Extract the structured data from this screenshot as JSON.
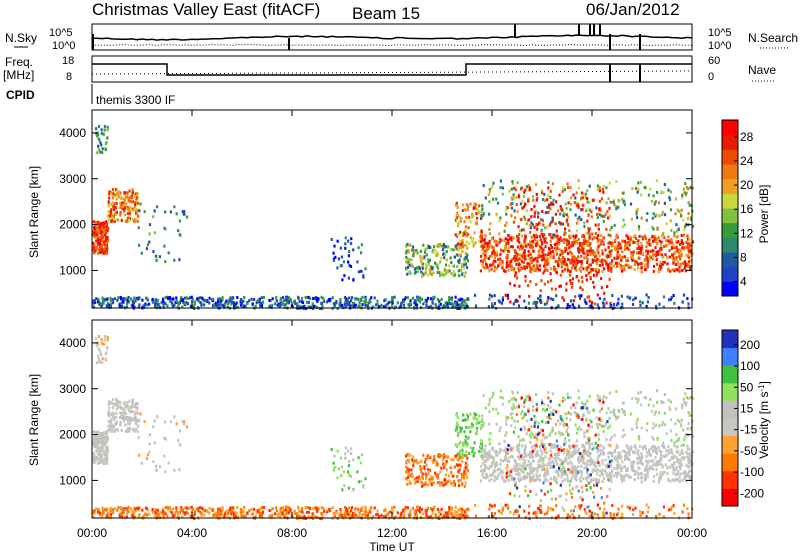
{
  "header": {
    "title": "Christmas Valley East (fitACF)",
    "beam": "Beam 15",
    "date": "06/Jan/2012"
  },
  "summary_labels": {
    "nsky": "N.Sky",
    "nsearch": "N.Search",
    "freq": "Freq.",
    "freq_unit": "[MHz]",
    "nave": "Nave",
    "cpid": "CPID",
    "cpid_value": "themis 3300 IF",
    "noise_ticks": [
      "10^5",
      "10^0"
    ],
    "freq_ticks": [
      "18",
      "8"
    ],
    "nave_ticks": [
      "60",
      "0"
    ]
  },
  "colors": {
    "power_scale": [
      "#0000ff",
      "#2040c8",
      "#1e5aa0",
      "#2a8a6a",
      "#3a9a3a",
      "#80c040",
      "#c8d840",
      "#f0a020",
      "#f07810",
      "#f04a00",
      "#e81a00",
      "#ff0000"
    ],
    "velocity_scale": [
      "#ff0000",
      "#ff3300",
      "#ff7a00",
      "#ffa030",
      "#c8c8c0",
      "#c0c0c0",
      "#90e060",
      "#40c040",
      "#4080ff",
      "#2030c0"
    ]
  },
  "chart_data": [
    {
      "type": "heatmap",
      "name": "power",
      "xlabel": "",
      "ylabel": "Slant Range [km]",
      "yticks": [
        "1000",
        "2000",
        "3000",
        "4000"
      ],
      "ylim": [
        180,
        4500
      ],
      "colorbar": {
        "label": "Power [dB]",
        "ticks": [
          "28",
          "24",
          "20",
          "16",
          "12",
          "8",
          "4"
        ],
        "range": [
          0,
          30
        ]
      }
    },
    {
      "type": "heatmap",
      "name": "velocity",
      "xlabel": "Time UT",
      "ylabel": "Slant Range [km]",
      "xticks": [
        "00:00",
        "04:00",
        "08:00",
        "12:00",
        "16:00",
        "20:00",
        "00:00"
      ],
      "yticks": [
        "1000",
        "2000",
        "3000",
        "4000"
      ],
      "ylim": [
        180,
        4500
      ],
      "colorbar": {
        "label": "Velocity [m s^-1]",
        "ticks": [
          "200",
          "100",
          "50",
          "15",
          "-15",
          "-50",
          "-100",
          "-200"
        ],
        "range": [
          -250,
          250
        ]
      }
    }
  ]
}
